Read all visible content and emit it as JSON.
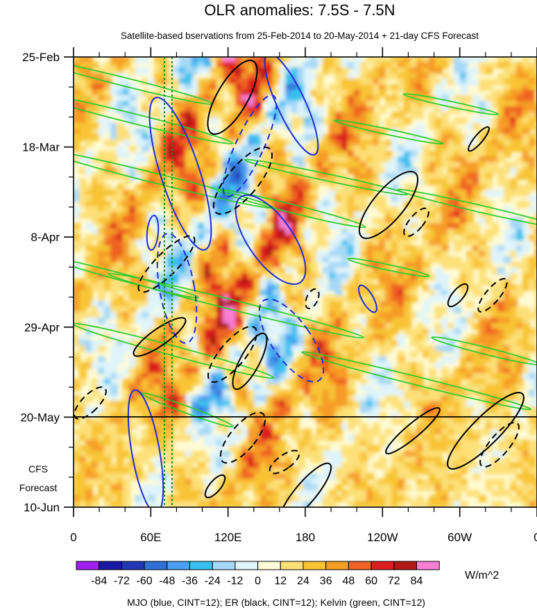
{
  "chart_data": {
    "type": "heatmap",
    "title": "OLR anomalies: 7.5S - 7.5N",
    "subtitle": "Satellite-based bservations from 25-Feb-2014 to 20-May-2014 + 21-day CFS Forecast",
    "x_ticks": [
      "0",
      "60E",
      "120E",
      "180",
      "120W",
      "60W",
      "0"
    ],
    "x_range_deg": [
      0,
      360
    ],
    "y_ticks": [
      "25-Feb",
      "18-Mar",
      "8-Apr",
      "29-Apr",
      "20-May",
      "10-Jun"
    ],
    "y_range": [
      "25-Feb-2014",
      "10-Jun-2014"
    ],
    "observation_end": "20-May",
    "forecast_label": [
      "CFS",
      "Forecast"
    ],
    "colorbar": {
      "levels": [
        -84,
        -72,
        -60,
        -48,
        -36,
        -24,
        -12,
        0,
        12,
        24,
        36,
        48,
        60,
        72,
        84
      ],
      "labels": [
        "-84",
        "-72",
        "-60",
        "-48",
        "-36",
        "-24",
        "-12",
        "0",
        "12",
        "24",
        "36",
        "48",
        "60",
        "72",
        "84"
      ],
      "colors": [
        "#a020f0",
        "#1a1aa6",
        "#2336b8",
        "#2f6fd6",
        "#4a9df0",
        "#39c0f0",
        "#a6d8f7",
        "#dff4fb",
        "#fffbd6",
        "#fde078",
        "#f8c434",
        "#f59b26",
        "#ef6224",
        "#dc1e1e",
        "#b01818",
        "#f77fd4"
      ],
      "units": "W/m^2"
    },
    "footer": "MJO (blue, CINT=12); ER (black, CINT=12); Kelvin (green, CINT=12)",
    "overlays": {
      "mjo_color": "#1f2bd6",
      "er_color": "#000000",
      "kelvin_color": "#2dcc2d",
      "reference_lines_color": "#1a8a1a"
    }
  }
}
